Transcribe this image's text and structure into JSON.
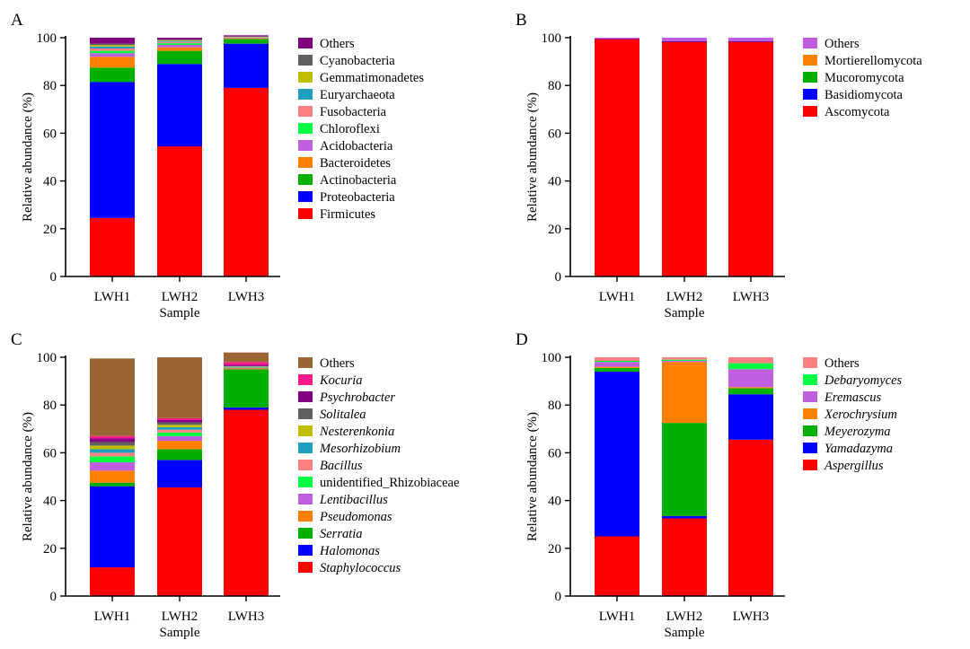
{
  "figure": {
    "panels": [
      "A",
      "B",
      "C",
      "D"
    ]
  },
  "chart_data": [
    {
      "type": "bar",
      "stacked": true,
      "panel_label": "A",
      "title": "",
      "xlabel": "Sample",
      "ylabel": "Relative abundance (%)",
      "ylim": [
        0,
        100
      ],
      "yticks": [
        0,
        20,
        40,
        60,
        80,
        100
      ],
      "categories": [
        "LWH1",
        "LWH2",
        "LWH3"
      ],
      "legend_italic": false,
      "series": [
        {
          "name": "Firmicutes",
          "color": "#ff0000",
          "values": [
            24.5,
            54.5,
            79.0
          ]
        },
        {
          "name": "Proteobacteria",
          "color": "#0000ff",
          "values": [
            57.0,
            34.5,
            18.5
          ]
        },
        {
          "name": "Actinobacteria",
          "color": "#00b000",
          "values": [
            6.0,
            5.5,
            2.0
          ]
        },
        {
          "name": "Bacteroidetes",
          "color": "#ff8000",
          "values": [
            4.5,
            1.5,
            0.3
          ]
        },
        {
          "name": "Acidobacteria",
          "color": "#bf5fdf",
          "values": [
            1.5,
            1.0,
            0.2
          ]
        },
        {
          "name": "Chloroflexi",
          "color": "#00ff40",
          "values": [
            1.0,
            0.7,
            0.1
          ]
        },
        {
          "name": "Fusobacteria",
          "color": "#ff8080",
          "values": [
            1.0,
            0.5,
            0.1
          ]
        },
        {
          "name": "Euryarchaeota",
          "color": "#1f9fbf",
          "values": [
            0.8,
            0.4,
            0.1
          ]
        },
        {
          "name": "Gemmatimonadetes",
          "color": "#bfbf00",
          "values": [
            0.6,
            0.3,
            0.1
          ]
        },
        {
          "name": "Cyanobacteria",
          "color": "#606060",
          "values": [
            0.6,
            0.3,
            0.1
          ]
        },
        {
          "name": "Others",
          "color": "#800080",
          "values": [
            2.5,
            0.8,
            0.5
          ]
        }
      ]
    },
    {
      "type": "bar",
      "stacked": true,
      "panel_label": "B",
      "title": "",
      "xlabel": "Sample",
      "ylabel": "Relative abundance (%)",
      "ylim": [
        0,
        100
      ],
      "yticks": [
        0,
        20,
        40,
        60,
        80,
        100
      ],
      "categories": [
        "LWH1",
        "LWH2",
        "LWH3"
      ],
      "legend_italic": false,
      "series": [
        {
          "name": "Ascomycota",
          "color": "#ff0000",
          "values": [
            99.5,
            98.3,
            98.3
          ]
        },
        {
          "name": "Basidiomycota",
          "color": "#0000ff",
          "values": [
            0.2,
            0.2,
            0.2
          ]
        },
        {
          "name": "Mucoromycota",
          "color": "#00b000",
          "values": [
            0.0,
            0.0,
            0.0
          ]
        },
        {
          "name": "Mortierellomycota",
          "color": "#ff8000",
          "values": [
            0.0,
            0.0,
            0.0
          ]
        },
        {
          "name": "Others",
          "color": "#bf5fdf",
          "values": [
            0.3,
            1.5,
            1.5
          ]
        }
      ]
    },
    {
      "type": "bar",
      "stacked": true,
      "panel_label": "C",
      "title": "",
      "xlabel": "Sample",
      "ylabel": "Relative abundance (%)",
      "ylim": [
        0,
        100
      ],
      "yticks": [
        0,
        20,
        40,
        60,
        80,
        100
      ],
      "categories": [
        "LWH1",
        "LWH2",
        "LWH3"
      ],
      "legend_italic": true,
      "series": [
        {
          "name": "Staphylococcus",
          "color": "#ff0000",
          "values": [
            12.0,
            45.5,
            78.0
          ],
          "italic": true
        },
        {
          "name": "Halomonas",
          "color": "#0000ff",
          "values": [
            34.0,
            11.5,
            1.0
          ],
          "italic": true
        },
        {
          "name": "Serratia",
          "color": "#00b000",
          "values": [
            1.5,
            4.5,
            16.0
          ],
          "italic": true
        },
        {
          "name": "Pseudomonas",
          "color": "#ff8000",
          "values": [
            5.0,
            3.5,
            0.3
          ],
          "italic": true
        },
        {
          "name": "Lentibacillus",
          "color": "#bf5fdf",
          "values": [
            3.5,
            2.0,
            0.2
          ],
          "italic": true
        },
        {
          "name": "unidentified_Rhizobiaceae",
          "color": "#00ff40",
          "values": [
            2.5,
            1.5,
            0.2
          ],
          "italic": false
        },
        {
          "name": "Bacillus",
          "color": "#ff8080",
          "values": [
            1.5,
            1.2,
            0.2
          ],
          "italic": true
        },
        {
          "name": "Mesorhizobium",
          "color": "#1f9fbf",
          "values": [
            1.5,
            1.0,
            0.2
          ],
          "italic": true
        },
        {
          "name": "Nesterenkonia",
          "color": "#bfbf00",
          "values": [
            1.5,
            1.0,
            0.1
          ],
          "italic": true
        },
        {
          "name": "Solitalea",
          "color": "#606060",
          "values": [
            1.5,
            1.0,
            0.1
          ],
          "italic": true
        },
        {
          "name": "Psychrobacter",
          "color": "#800080",
          "values": [
            1.5,
            1.0,
            0.5
          ],
          "italic": true
        },
        {
          "name": "Kocuria",
          "color": "#ff1a8c",
          "values": [
            1.0,
            0.8,
            1.2
          ],
          "italic": true
        },
        {
          "name": "Others",
          "color": "#996633",
          "values": [
            32.5,
            25.5,
            4.0
          ],
          "italic": false
        }
      ]
    },
    {
      "type": "bar",
      "stacked": true,
      "panel_label": "D",
      "title": "",
      "xlabel": "Sample",
      "ylabel": "Relative abundance (%)",
      "ylim": [
        0,
        100
      ],
      "yticks": [
        0,
        20,
        40,
        60,
        80,
        100
      ],
      "categories": [
        "LWH1",
        "LWH2",
        "LWH3"
      ],
      "legend_italic": true,
      "series": [
        {
          "name": "Aspergillus",
          "color": "#ff0000",
          "values": [
            25.0,
            32.5,
            65.5
          ],
          "italic": true
        },
        {
          "name": "Yamadazyma",
          "color": "#0000ff",
          "values": [
            69.0,
            1.0,
            19.0
          ],
          "italic": true
        },
        {
          "name": "Meyerozyma",
          "color": "#00b000",
          "values": [
            1.5,
            39.0,
            2.5
          ],
          "italic": true
        },
        {
          "name": "Xerochrysium",
          "color": "#ff8000",
          "values": [
            0.5,
            25.5,
            0.5
          ],
          "italic": true
        },
        {
          "name": "Eremascus",
          "color": "#bf5fdf",
          "values": [
            2.0,
            0.5,
            7.5
          ],
          "italic": true
        },
        {
          "name": "Debaryomyces",
          "color": "#00ff40",
          "values": [
            0.5,
            0.5,
            2.5
          ],
          "italic": true
        },
        {
          "name": "Others",
          "color": "#ff8080",
          "values": [
            1.5,
            1.0,
            2.5
          ],
          "italic": false
        }
      ]
    }
  ]
}
